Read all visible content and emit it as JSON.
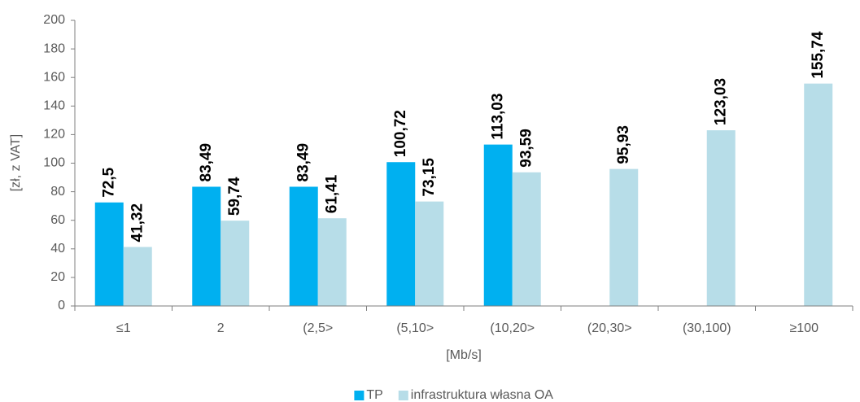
{
  "chart_data": {
    "type": "bar",
    "ylabel": "[zł, z VAT]",
    "xlabel": "[Mb/s]",
    "categories": [
      "≤1",
      "2",
      "(2,5>",
      "(5,10>",
      "(10,20>",
      "(20,30>",
      "(30,100)",
      "≥100"
    ],
    "series": [
      {
        "name": "TP",
        "color": "#00b0f0",
        "values": [
          72.5,
          83.49,
          83.49,
          100.72,
          113.03,
          null,
          null,
          null
        ],
        "value_labels": [
          "72,5",
          "83,49",
          "83,49",
          "100,72",
          "113,03",
          null,
          null,
          null
        ]
      },
      {
        "name": "infrastruktura własna OA",
        "color": "#b7dde8",
        "values": [
          41.32,
          59.74,
          61.41,
          73.15,
          93.59,
          95.93,
          123.03,
          155.74
        ],
        "value_labels": [
          "41,32",
          "59,74",
          "61,41",
          "73,15",
          "93,59",
          "95,93",
          "123,03",
          "155,74"
        ]
      }
    ],
    "ylim": [
      0,
      200
    ],
    "yticks": [
      0,
      20,
      40,
      60,
      80,
      100,
      120,
      140,
      160,
      180,
      200
    ],
    "grid": false,
    "legend": "bottom"
  }
}
